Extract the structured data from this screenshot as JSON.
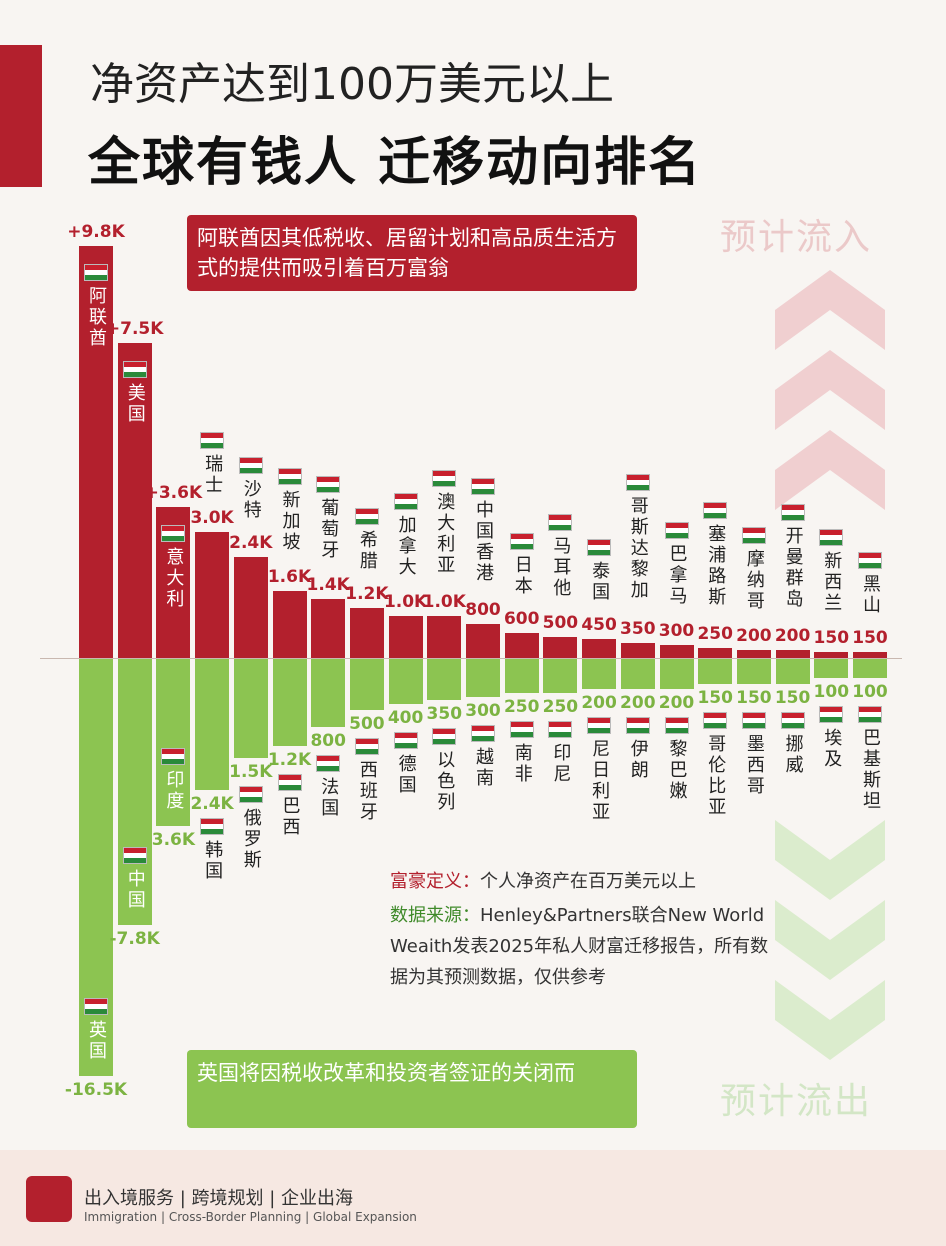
{
  "chart_data": {
    "type": "bar",
    "title": "净资产达到100万美元以上",
    "subtitle": "全球有钱人 迁移动向排名",
    "series": [
      {
        "name": "预计流入",
        "color": "#b3202d",
        "categories": [
          "阿联酋",
          "美国",
          "意大利",
          "瑞士",
          "沙特",
          "新加坡",
          "葡萄牙",
          "希腊",
          "加拿大",
          "澳大利亚",
          "中国香港",
          "日本",
          "马耳他",
          "泰国",
          "哥斯达黎加",
          "巴拿马",
          "塞浦路斯",
          "摩纳哥",
          "开曼群岛",
          "新西兰",
          "黑山"
        ],
        "values": [
          9800,
          7500,
          3600,
          3000,
          2400,
          1600,
          1400,
          1200,
          1000,
          1000,
          800,
          600,
          500,
          450,
          350,
          300,
          250,
          200,
          200,
          150,
          150
        ],
        "value_labels": [
          "+9.8K",
          "+7.5K",
          "+3.6K",
          "3.0K",
          "2.4K",
          "1.6K",
          "1.4K",
          "1.2K",
          "1.0K",
          "1.0K",
          "800",
          "600",
          "500",
          "450",
          "350",
          "300",
          "250",
          "200",
          "200",
          "150",
          "150"
        ]
      },
      {
        "name": "预计流出",
        "color": "#8cc451",
        "categories": [
          "英国",
          "中国",
          "印度",
          "韩国",
          "俄罗斯",
          "巴西",
          "法国",
          "西班牙",
          "德国",
          "以色列",
          "越南",
          "南非",
          "印尼",
          "尼日利亚",
          "伊朗",
          "黎巴嫩",
          "哥伦比亚",
          "墨西哥",
          "挪威",
          "埃及",
          "巴基斯坦"
        ],
        "values": [
          -16500,
          -7800,
          -3600,
          -2400,
          -1500,
          -1200,
          -800,
          -500,
          -400,
          -350,
          -300,
          -250,
          -250,
          -200,
          -200,
          -200,
          -150,
          -150,
          -150,
          -100,
          -100
        ],
        "value_labels": [
          "-16.5K",
          "-7.8K",
          "3.6K",
          "2.4K",
          "1.5K",
          "1.2K",
          "800",
          "500",
          "400",
          "350",
          "300",
          "250",
          "250",
          "200",
          "200",
          "200",
          "150",
          "150",
          "150",
          "100",
          "100"
        ]
      }
    ],
    "annotations": [
      "阿联酋因其低税收、居留计划和高品质生活方式的提供而吸引着百万富翁",
      "英国将因税收改革和投资者签证的关闭而"
    ],
    "definition": {
      "label": "富豪定义：",
      "text": "个人净资产在百万美元以上"
    },
    "source": {
      "label": "数据来源：",
      "text": "Henley&Partners联合New World Weaith发表2025年私人财富迁移报告，所有数据为其预测数据，仅供参考"
    }
  },
  "footer": {
    "services": "出入境服务 | 跨境规划 | 企业出海",
    "services_en": "Immigration | Cross-Border Planning | Global Expansion"
  }
}
